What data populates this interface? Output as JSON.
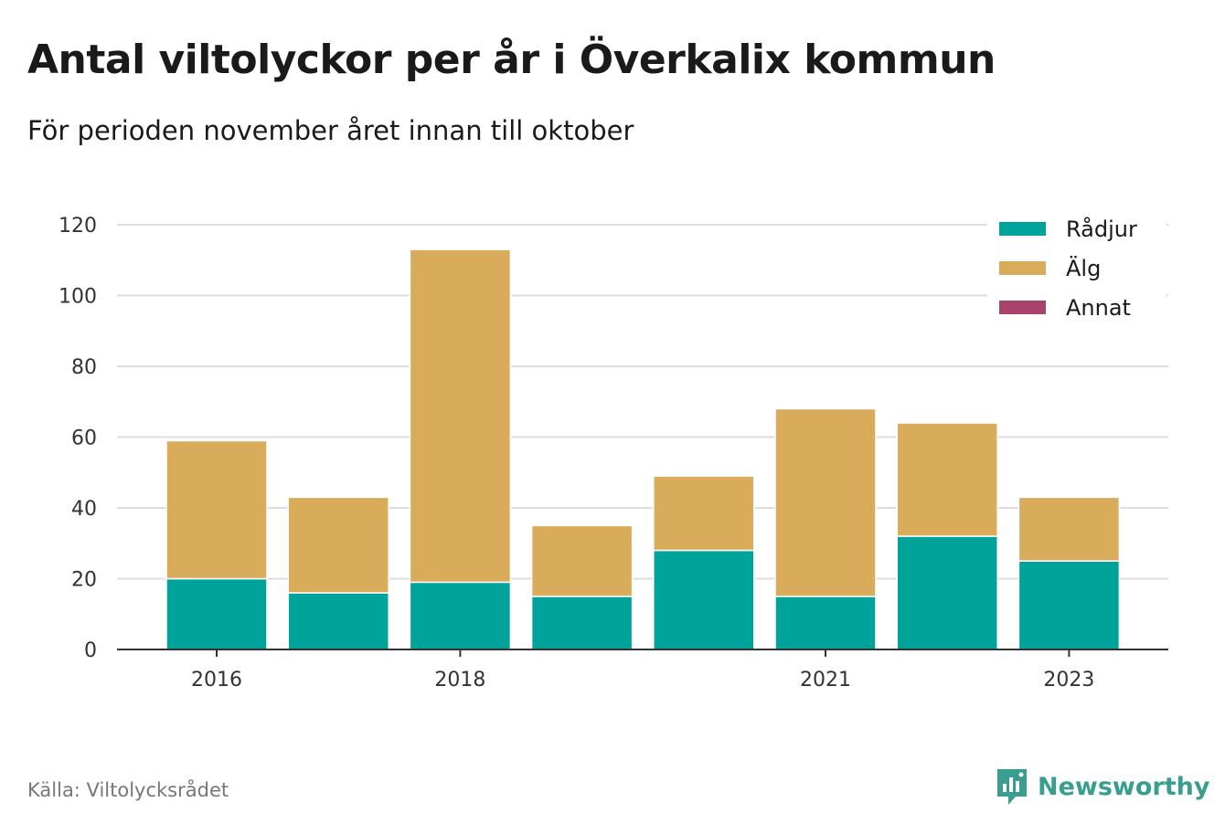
{
  "header": {
    "title": "Antal viltolyckor per år i Överkalix kommun",
    "subtitle": "För perioden november året innan till oktober"
  },
  "footer": {
    "source": "Källa: Viltolycksrådet",
    "brand": "Newsworthy",
    "brand_color": "#3a9e8f",
    "brand_icon": "bar-chart-speech-bubble-icon"
  },
  "chart_data": {
    "type": "bar",
    "stacked": true,
    "categories": [
      "2016",
      "2017",
      "2018",
      "2019",
      "2020",
      "2021",
      "2022",
      "2023"
    ],
    "x_tick_labels": [
      "2016",
      "",
      "2018",
      "",
      "",
      "2021",
      "",
      "2023"
    ],
    "series": [
      {
        "name": "Rådjur",
        "color": "#00a39a",
        "values": [
          20,
          16,
          19,
          15,
          28,
          15,
          32,
          25
        ]
      },
      {
        "name": "Älg",
        "color": "#d9ac5b",
        "values": [
          39,
          27,
          94,
          20,
          21,
          53,
          32,
          18
        ]
      },
      {
        "name": "Annat",
        "color": "#a8436c",
        "values": [
          0.4,
          0,
          0,
          0,
          0,
          0,
          0,
          0
        ]
      }
    ],
    "ylim": [
      0,
      120
    ],
    "yticks": [
      0,
      20,
      40,
      60,
      80,
      100,
      120
    ],
    "grid": true,
    "legend": "top-right"
  }
}
